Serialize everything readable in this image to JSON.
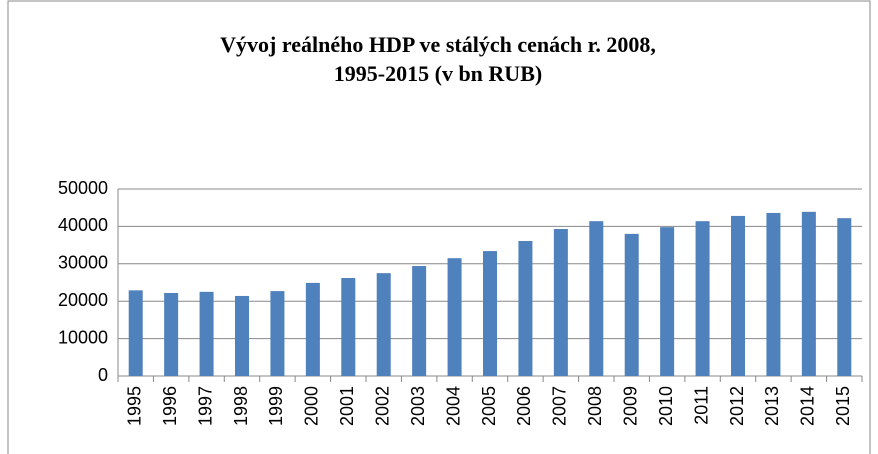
{
  "chart_data": {
    "type": "bar",
    "title": [
      "Vývoj reálného HDP ve stálých cenách r. 2008,",
      "1995-2015 (v bn RUB)"
    ],
    "categories": [
      "1995",
      "1996",
      "1997",
      "1998",
      "1999",
      "2000",
      "2001",
      "2002",
      "2003",
      "2004",
      "2005",
      "2006",
      "2007",
      "2008",
      "2009",
      "2010",
      "2011",
      "2012",
      "2013",
      "2014",
      "2015"
    ],
    "values": [
      22900,
      22200,
      22500,
      21400,
      22700,
      24900,
      26200,
      27500,
      29400,
      31500,
      33400,
      36100,
      39300,
      41400,
      38000,
      39800,
      41400,
      42800,
      43600,
      43900,
      42200
    ],
    "color": "#4f81bd",
    "ylim": [
      0,
      50000
    ],
    "yticks": [
      0,
      10000,
      20000,
      30000,
      40000,
      50000
    ],
    "grid": true
  }
}
